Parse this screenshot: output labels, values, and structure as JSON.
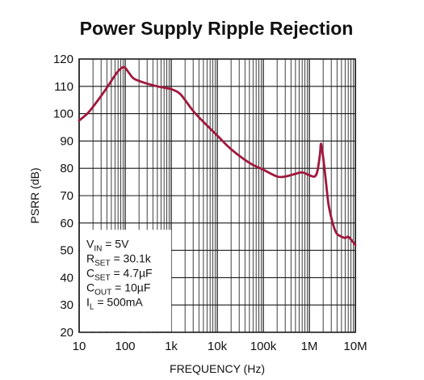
{
  "chart_data": {
    "type": "line",
    "title": "Power Supply Ripple Rejection",
    "xlabel": "FREQUENCY (Hz)",
    "ylabel": "PSRR (dB)",
    "xscale": "log",
    "xlim": [
      10,
      10000000
    ],
    "ylim": [
      20,
      120
    ],
    "grid": true,
    "x_tick_labels": [
      "10",
      "100",
      "1k",
      "10k",
      "100k",
      "1M",
      "10M"
    ],
    "x_tick_values": [
      10,
      100,
      1000,
      10000,
      100000,
      1000000,
      10000000
    ],
    "y_tick_values": [
      20,
      30,
      40,
      50,
      60,
      70,
      80,
      90,
      100,
      110,
      120
    ],
    "line_color": "#a0183c",
    "series": [
      {
        "x": [
          10,
          15,
          20,
          30,
          40,
          50,
          60,
          70,
          80,
          90,
          100,
          120,
          150,
          200,
          300,
          500,
          700,
          1000,
          1500,
          2000,
          3000,
          5000,
          10000,
          20000,
          50000,
          100000,
          200000,
          300000,
          500000,
          700000,
          1000000,
          1300000,
          1500000,
          1700000,
          1800000,
          2000000,
          2300000,
          2600000,
          3000000,
          3500000,
          4000000,
          5000000,
          6000000,
          7000000,
          8000000,
          10000000
        ],
        "y": [
          97.5,
          100,
          102.5,
          106.5,
          109.5,
          112,
          114,
          115.5,
          116.5,
          117,
          116.8,
          115,
          113,
          112,
          111,
          110,
          109.5,
          109,
          107.5,
          105,
          101,
          97,
          92,
          87,
          82,
          79.5,
          77,
          77,
          78,
          78.5,
          77.5,
          77,
          79,
          85,
          89,
          84,
          75,
          67,
          62,
          58,
          56,
          55,
          54.5,
          55,
          54,
          52
        ]
      }
    ],
    "legend": {
      "lines": [
        {
          "main": "V",
          "sub": "IN",
          "rest": " = 5V"
        },
        {
          "main": "R",
          "sub": "SET",
          "rest": " = 30.1k"
        },
        {
          "main": "C",
          "sub": "SET",
          "rest": " = 4.7µF"
        },
        {
          "main": "C",
          "sub": "OUT",
          "rest": " = 10µF"
        },
        {
          "main": "I",
          "sub": "L",
          "rest": " = 500mA"
        }
      ]
    }
  }
}
